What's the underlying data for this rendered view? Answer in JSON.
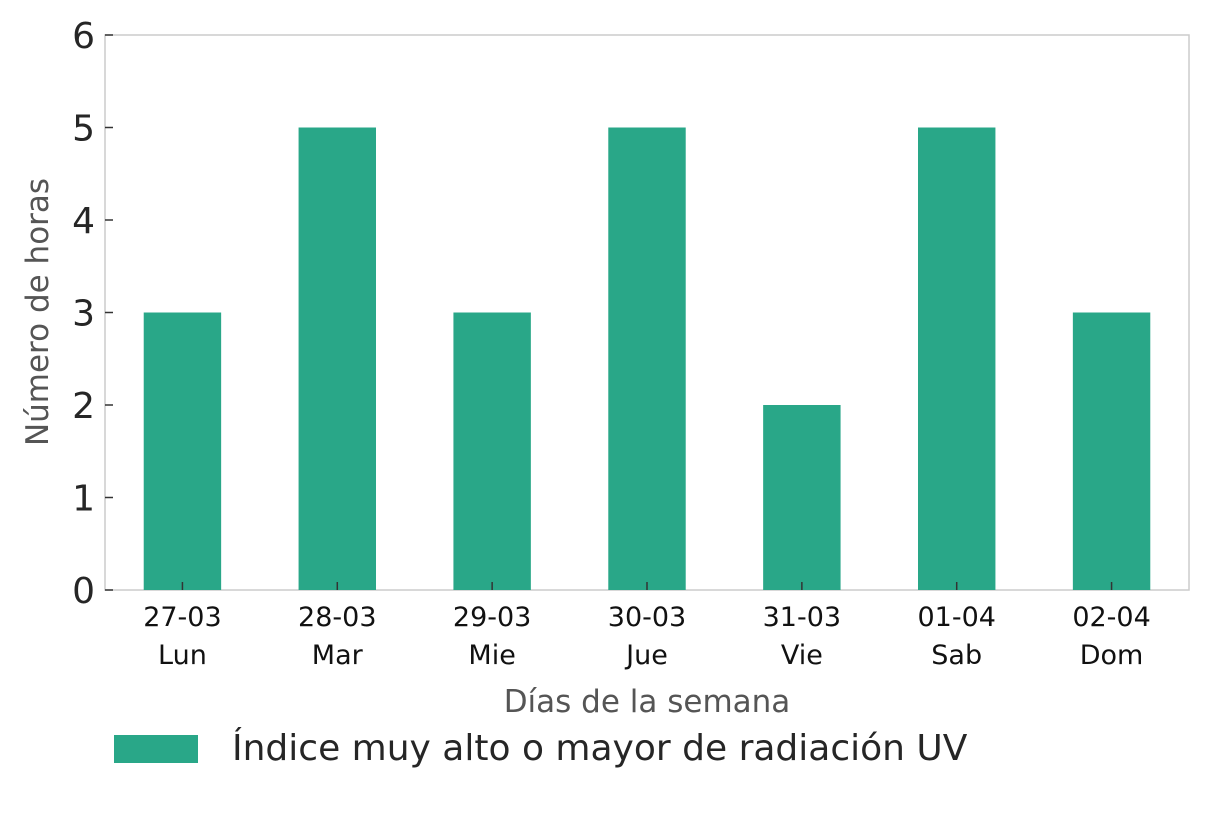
{
  "chart_data": {
    "type": "bar",
    "categories": [
      "27-03",
      "28-03",
      "29-03",
      "30-03",
      "31-03",
      "01-04",
      "02-04"
    ],
    "category_sublabels": [
      "Lun",
      "Mar",
      "Mie",
      "Jue",
      "Vie",
      "Sab",
      "Dom"
    ],
    "series": [
      {
        "name": "Índice muy alto o mayor de radiación UV",
        "color": "#29a788",
        "values": [
          3,
          5,
          3,
          5,
          2,
          5,
          3
        ]
      }
    ],
    "xlabel": "Días de la semana",
    "ylabel": "Número de horas",
    "ylim": [
      0,
      6
    ],
    "yticks": [
      0,
      1,
      2,
      3,
      4,
      5,
      6
    ],
    "grid": false,
    "legend_position": "bottom"
  }
}
